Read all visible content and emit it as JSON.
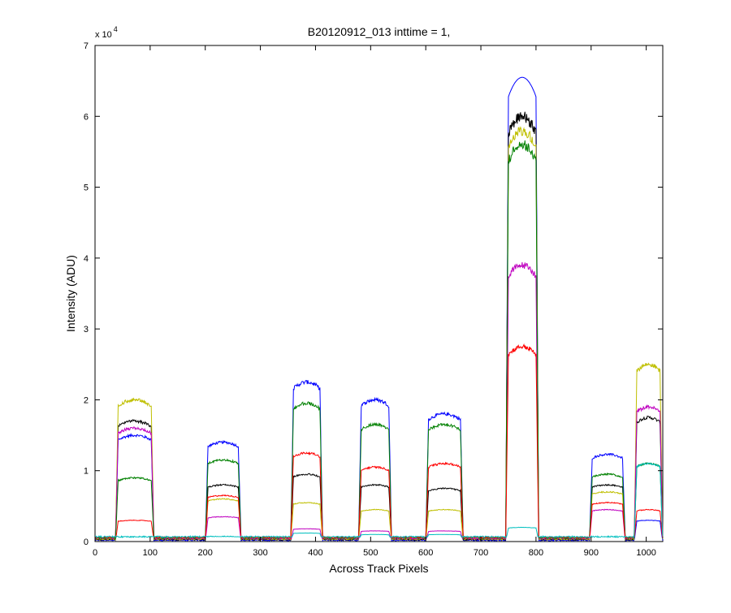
{
  "chart_data": {
    "type": "line",
    "title": "B20120912_013 inttime = 1,",
    "xlabel": "Across Track Pixels",
    "ylabel": "Intensity (ADU)",
    "y_multiplier_label": "x 10",
    "y_multiplier_exponent": "4",
    "xlim": [
      0,
      1030
    ],
    "ylim": [
      0,
      70000
    ],
    "x_ticks": [
      0,
      100,
      200,
      300,
      400,
      500,
      600,
      700,
      800,
      900,
      1000
    ],
    "y_ticks": [
      0,
      10000,
      20000,
      30000,
      40000,
      50000,
      60000,
      70000
    ],
    "y_tick_labels": [
      "0",
      "1",
      "2",
      "3",
      "4",
      "5",
      "6",
      "7"
    ],
    "grid": false,
    "legend": "none",
    "segments": [
      {
        "start": 37,
        "end": 107
      },
      {
        "start": 200,
        "end": 265
      },
      {
        "start": 355,
        "end": 413
      },
      {
        "start": 478,
        "end": 538
      },
      {
        "start": 600,
        "end": 668
      },
      {
        "start": 745,
        "end": 805
      },
      {
        "start": 897,
        "end": 962
      },
      {
        "start": 978,
        "end": 1030
      }
    ],
    "series": [
      {
        "color": "#0000ff",
        "levels": [
          15000,
          14000,
          22500,
          20000,
          18000,
          65500,
          12300,
          3000
        ]
      },
      {
        "color": "#000000",
        "levels": [
          17000,
          8000,
          9500,
          8000,
          7500,
          60000,
          8000,
          17500
        ]
      },
      {
        "color": "#bfbf00",
        "levels": [
          20000,
          6000,
          5500,
          4500,
          4500,
          58000,
          7000,
          25000
        ]
      },
      {
        "color": "#bf00bf",
        "levels": [
          16000,
          3500,
          1800,
          1500,
          1500,
          39000,
          4500,
          19000
        ]
      },
      {
        "color": "#008000",
        "levels": [
          9000,
          11500,
          19500,
          16500,
          16500,
          56000,
          9500,
          11000
        ]
      },
      {
        "color": "#ff0000",
        "levels": [
          3000,
          6500,
          12500,
          10500,
          11000,
          27500,
          5500,
          4500
        ]
      },
      {
        "color": "#00bfbf",
        "levels": [
          500,
          700,
          1200,
          1000,
          1000,
          2000,
          600,
          11000
        ]
      }
    ]
  }
}
